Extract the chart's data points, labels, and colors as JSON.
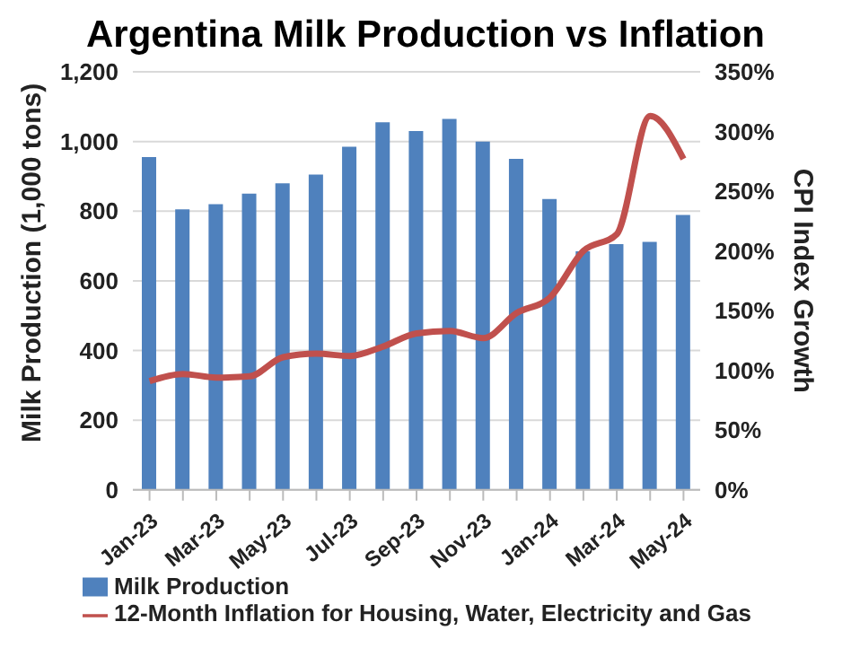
{
  "chart_data": {
    "type": "bar",
    "title": "Argentina Milk Production vs Inflation",
    "ylabel": "Milk Production (1,000 tons)",
    "y2label": "CPI Index Growth",
    "categories": [
      "Jan-23",
      null,
      "Mar-23",
      null,
      "May-23",
      null,
      "Jul-23",
      null,
      "Sep-23",
      null,
      "Nov-23",
      null,
      "Jan-24",
      null,
      "Mar-24",
      null,
      "May-24"
    ],
    "series": [
      {
        "name": "Milk Production",
        "color": "#4f81bd",
        "values": [
          955,
          805,
          820,
          850,
          880,
          905,
          985,
          1055,
          1030,
          1065,
          1000,
          950,
          835,
          685,
          705,
          712,
          789
        ]
      },
      {
        "name": "12-Month Inflation for Housing, Water, Electricity and Gas",
        "type": "line",
        "axis": "y2",
        "color": "#c0504d",
        "values": [
          91,
          97,
          94,
          95,
          111,
          114,
          112,
          120,
          131,
          133,
          127,
          148,
          161,
          200,
          214,
          313,
          277
        ]
      }
    ],
    "ylim": [
      0,
      1200
    ],
    "yticks": [
      {
        "value": 0,
        "label": "0"
      },
      {
        "value": 200,
        "label": "200"
      },
      {
        "value": 400,
        "label": "400"
      },
      {
        "value": 600,
        "label": "600"
      },
      {
        "value": 800,
        "label": "800"
      },
      {
        "value": 1000,
        "label": "1,000"
      },
      {
        "value": 1200,
        "label": "1,200"
      }
    ],
    "y2lim": [
      0,
      350
    ],
    "y2ticks": [
      {
        "value": 0,
        "label": "0%"
      },
      {
        "value": 50,
        "label": "50%"
      },
      {
        "value": 100,
        "label": "100%"
      },
      {
        "value": 150,
        "label": "150%"
      },
      {
        "value": 200,
        "label": "200%"
      },
      {
        "value": 250,
        "label": "250%"
      },
      {
        "value": 300,
        "label": "300%"
      },
      {
        "value": 350,
        "label": "350%"
      }
    ],
    "grid": "y",
    "legend": "bottom",
    "marker": "none",
    "line_style": "solid"
  }
}
